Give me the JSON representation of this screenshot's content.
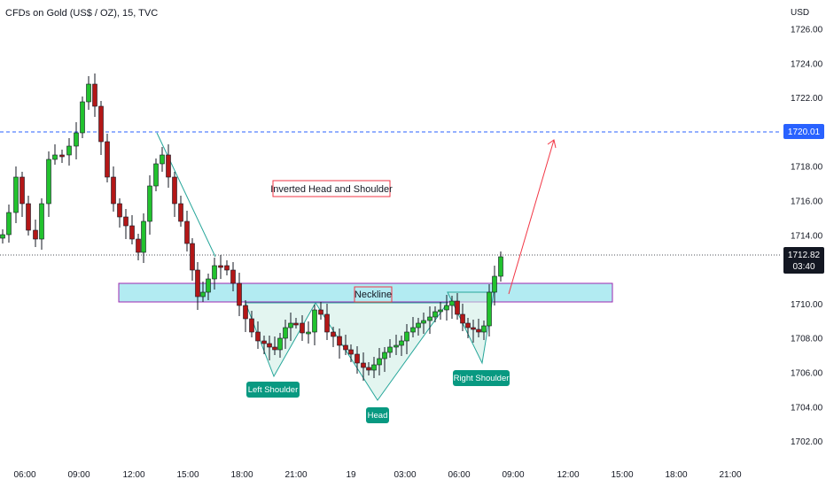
{
  "header": {
    "title": "CFDs on Gold (US$ / OZ), 15, TVC"
  },
  "axis": {
    "currency": "USD",
    "y_ticks": [
      "1726.00",
      "1724.00",
      "1722.00",
      "1720.00",
      "1718.00",
      "1716.00",
      "1714.00",
      "1712.00",
      "1710.00",
      "1708.00",
      "1706.00",
      "1704.00",
      "1702.00"
    ],
    "x_ticks": [
      "06:00",
      "09:00",
      "12:00",
      "15:00",
      "18:00",
      "21:00",
      "19",
      "03:00",
      "06:00",
      "09:00",
      "12:00",
      "15:00",
      "18:00",
      "21:00"
    ]
  },
  "price_tags": {
    "target": "1720.01",
    "current": "1712.82",
    "countdown": "03:40"
  },
  "annotations": {
    "pattern_title": "Inverted Head and Shoulder",
    "neckline": "Neckline",
    "left_shoulder": "Left Shoulder",
    "head": "Head",
    "right_shoulder": "Right Shoulder"
  },
  "colors": {
    "up": "#089981",
    "up_body": "#22c22e",
    "down": "#f23645",
    "down_body": "#b31717",
    "target_line": "#2962ff",
    "neckline_fill": "#b2ebf2",
    "neckline_border": "#9c27b0",
    "label_bg": "#089981"
  }
}
